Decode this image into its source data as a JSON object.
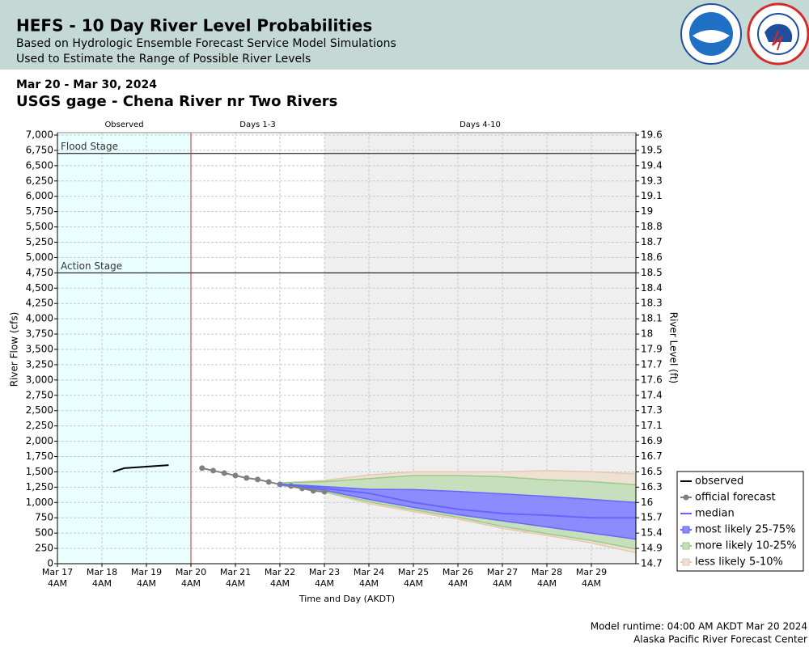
{
  "header": {
    "title": "HEFS - 10 Day River Level Probabilities",
    "subtitle": "Based on Hydrologic Ensemble Forecast Service Model Simulations",
    "subtitle2": "Used to Estimate the Range of Possible River Levels"
  },
  "chart_data": {
    "type": "probability-band",
    "date_range": "Mar 20 - Mar 30, 2024",
    "title": "USGS gage - Chena River nr Two Rivers",
    "ylabel": "River Flow (cfs)",
    "y2label": "River Level (ft)",
    "xlabel": "Time and Day (AKDT)",
    "xlim": [
      "2024-03-17T04:00",
      "2024-03-30T04:00"
    ],
    "xticks": [
      {
        "value": "2024-03-17T04:00",
        "label": "Mar 17",
        "time": "4AM"
      },
      {
        "value": "2024-03-18T04:00",
        "label": "Mar 18",
        "time": "4AM"
      },
      {
        "value": "2024-03-19T04:00",
        "label": "Mar 19",
        "time": "4AM"
      },
      {
        "value": "2024-03-20T04:00",
        "label": "Mar 20",
        "time": "4AM"
      },
      {
        "value": "2024-03-21T04:00",
        "label": "Mar 21",
        "time": "4AM"
      },
      {
        "value": "2024-03-22T04:00",
        "label": "Mar 22",
        "time": "4AM"
      },
      {
        "value": "2024-03-23T04:00",
        "label": "Mar 23",
        "time": "4AM"
      },
      {
        "value": "2024-03-24T04:00",
        "label": "Mar 24",
        "time": "4AM"
      },
      {
        "value": "2024-03-25T04:00",
        "label": "Mar 25",
        "time": "4AM"
      },
      {
        "value": "2024-03-26T04:00",
        "label": "Mar 26",
        "time": "4AM"
      },
      {
        "value": "2024-03-27T04:00",
        "label": "Mar 27",
        "time": "4AM"
      },
      {
        "value": "2024-03-28T04:00",
        "label": "Mar 28",
        "time": "4AM"
      },
      {
        "value": "2024-03-29T04:00",
        "label": "Mar 29",
        "time": "4AM"
      }
    ],
    "ylim": [
      0,
      7000
    ],
    "yticks": [
      0,
      250,
      500,
      750,
      {
        "value": 1000,
        "label": "1,000"
      },
      {
        "value": 1250,
        "label": "1,250"
      },
      {
        "value": 1500,
        "label": "1,500"
      },
      {
        "value": 1750,
        "label": "1,750"
      },
      {
        "value": 2000,
        "label": "2,000"
      },
      {
        "value": 2250,
        "label": "2,250"
      },
      {
        "value": 2500,
        "label": "2,500"
      },
      {
        "value": 2750,
        "label": "2,750"
      },
      {
        "value": 3000,
        "label": "3,000"
      },
      {
        "value": 3250,
        "label": "3,250"
      },
      {
        "value": 3500,
        "label": "3,500"
      },
      {
        "value": 3750,
        "label": "3,750"
      },
      {
        "value": 4000,
        "label": "4,000"
      },
      {
        "value": 4250,
        "label": "4,250"
      },
      {
        "value": 4500,
        "label": "4,500"
      },
      {
        "value": 4750,
        "label": "4,750"
      },
      {
        "value": 5000,
        "label": "5,000"
      },
      {
        "value": 5250,
        "label": "5,250"
      },
      {
        "value": 5500,
        "label": "5,500"
      },
      {
        "value": 5750,
        "label": "5,750"
      },
      {
        "value": 6000,
        "label": "6,000"
      },
      {
        "value": 6250,
        "label": "6,250"
      },
      {
        "value": 6500,
        "label": "6,500"
      },
      {
        "value": 6750,
        "label": "6,750"
      },
      {
        "value": 7000,
        "label": "7,000"
      }
    ],
    "y2lim": [
      14.7,
      19.6
    ],
    "y2ticks": [
      14.7,
      14.9,
      15.4,
      15.7,
      16.0,
      16.3,
      16.5,
      16.7,
      16.9,
      17.1,
      17.3,
      17.4,
      17.6,
      17.7,
      17.9,
      18.0,
      18.1,
      18.3,
      18.4,
      18.5,
      18.6,
      18.7,
      18.8,
      19.0,
      19.1,
      19.3,
      19.4,
      19.5,
      19.6
    ],
    "grid": true,
    "regions": [
      {
        "label": "Observed",
        "start": "2024-03-17T04:00",
        "end": "2024-03-20T04:00",
        "color": "#eaffff"
      },
      {
        "label": "Days 1-3",
        "start": "2024-03-20T04:00",
        "end": "2024-03-23T04:00",
        "color": "#ffffff"
      },
      {
        "label": "Days 4-10",
        "start": "2024-03-23T04:00",
        "end": "2024-03-30T04:00",
        "color": "#efefef"
      }
    ],
    "thresholds": [
      {
        "label": "Flood Stage",
        "value": 6700
      },
      {
        "label": "Action Stage",
        "value": 4750
      }
    ],
    "series": [
      {
        "name": "observed",
        "style": "line",
        "color": "#000000",
        "x": [
          "2024-03-18T10:00",
          "2024-03-18T16:00",
          "2024-03-19T16:00"
        ],
        "values": [
          1500,
          1560,
          1610
        ]
      },
      {
        "name": "official forecast",
        "style": "points",
        "color": "#808080",
        "x": [
          "2024-03-20T10:00",
          "2024-03-20T16:00",
          "2024-03-20T22:00",
          "2024-03-21T04:00",
          "2024-03-21T10:00",
          "2024-03-21T16:00",
          "2024-03-21T22:00",
          "2024-03-22T04:00",
          "2024-03-22T10:00",
          "2024-03-22T16:00",
          "2024-03-22T22:00",
          "2024-03-23T04:00"
        ],
        "values": [
          1560,
          1520,
          1480,
          1440,
          1400,
          1375,
          1335,
          1295,
          1270,
          1230,
          1190,
          1175
        ]
      },
      {
        "name": "median",
        "style": "line",
        "color": "#6666ff",
        "x": [
          "2024-03-22T04:00",
          "2024-03-23T04:00",
          "2024-03-24T04:00",
          "2024-03-25T04:00",
          "2024-03-26T04:00",
          "2024-03-27T04:00",
          "2024-03-28T04:00",
          "2024-03-29T04:00",
          "2024-03-30T04:00"
        ],
        "values": [
          1300,
          1230,
          1150,
          1000,
          890,
          820,
          790,
          750,
          750
        ]
      }
    ],
    "bands": [
      {
        "name": "most likely 25-75%",
        "fill": "#8c8cff",
        "edge": "#6666ff",
        "x": [
          "2024-03-22T04:00",
          "2024-03-23T04:00",
          "2024-03-24T04:00",
          "2024-03-25T04:00",
          "2024-03-26T04:00",
          "2024-03-27T04:00",
          "2024-03-28T04:00",
          "2024-03-29T04:00",
          "2024-03-30T04:00"
        ],
        "lower": [
          1290,
          1200,
          1050,
          920,
          800,
          700,
          600,
          500,
          400
        ],
        "upper": [
          1300,
          1260,
          1215,
          1210,
          1180,
          1140,
          1100,
          1050,
          1000
        ]
      },
      {
        "name": "more likely 10-25%",
        "fill": "#c6dfbd",
        "edge": "#99cc88",
        "x": [
          "2024-03-22T04:00",
          "2024-03-23T04:00",
          "2024-03-24T04:00",
          "2024-03-25T04:00",
          "2024-03-26T04:00",
          "2024-03-27T04:00",
          "2024-03-28T04:00",
          "2024-03-29T04:00",
          "2024-03-30T04:00"
        ],
        "lower": [
          1280,
          1180,
          1010,
          880,
          760,
          610,
          490,
          380,
          240
        ],
        "upper": [
          1320,
          1340,
          1390,
          1440,
          1440,
          1420,
          1370,
          1340,
          1290
        ]
      },
      {
        "name": "less likely 5-10%",
        "fill": "#ede1d4",
        "edge": "#e6c8b0",
        "x": [
          "2024-03-22T04:00",
          "2024-03-23T04:00",
          "2024-03-24T04:00",
          "2024-03-25T04:00",
          "2024-03-26T04:00",
          "2024-03-27T04:00",
          "2024-03-28T04:00",
          "2024-03-29T04:00",
          "2024-03-30T04:00"
        ],
        "lower": [
          1280,
          1170,
          980,
          850,
          730,
          580,
          460,
          340,
          180
        ],
        "upper": [
          1320,
          1360,
          1450,
          1500,
          1500,
          1500,
          1520,
          1500,
          1470
        ]
      }
    ],
    "legend": "lower-right"
  },
  "footer": {
    "runtime": "Model runtime: 04:00 AM AKDT Mar 20 2024",
    "center": "Alaska Pacific River Forecast Center"
  }
}
